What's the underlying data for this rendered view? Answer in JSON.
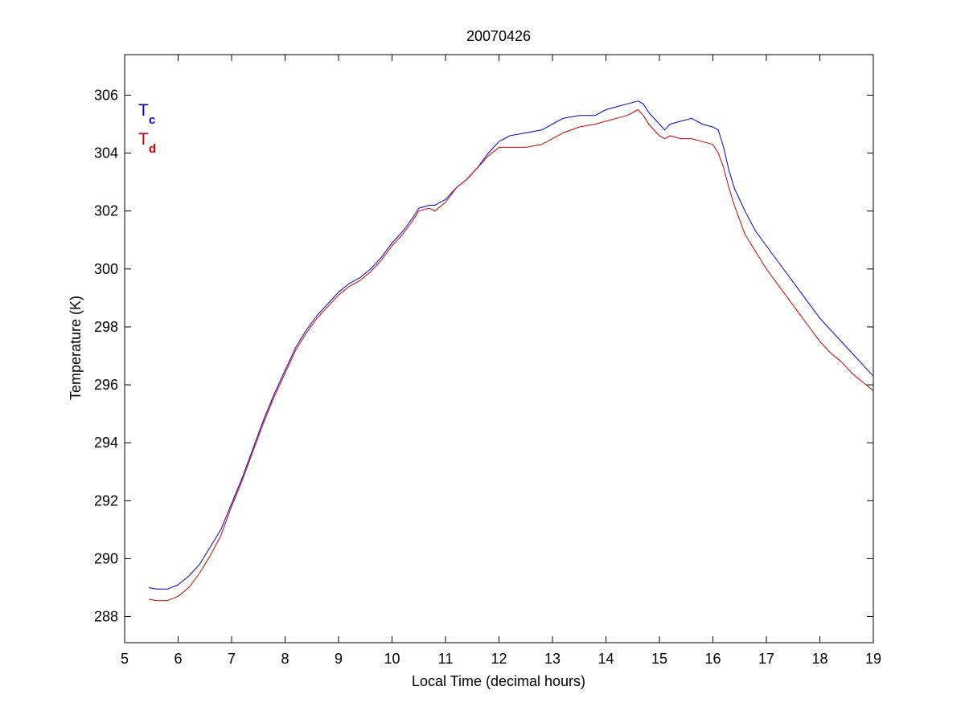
{
  "chart_data": {
    "type": "line",
    "title": "20070426",
    "xlabel": "Local Time (decimal hours)",
    "ylabel": "Temperature (K)",
    "xlim": [
      5,
      19
    ],
    "ylim": [
      287.1,
      307.4
    ],
    "xticks": [
      5,
      6,
      7,
      8,
      9,
      10,
      11,
      12,
      13,
      14,
      15,
      16,
      17,
      18,
      19
    ],
    "yticks": [
      288,
      290,
      292,
      294,
      296,
      298,
      300,
      302,
      304,
      306
    ],
    "grid": false,
    "legend_position": "top-left",
    "series": [
      {
        "name": "T",
        "subscript": "c",
        "color": "#0000cc",
        "x": [
          5.45,
          5.6,
          5.8,
          6.0,
          6.2,
          6.4,
          6.6,
          6.8,
          7.0,
          7.2,
          7.4,
          7.6,
          7.8,
          8.0,
          8.2,
          8.4,
          8.6,
          8.8,
          9.0,
          9.2,
          9.4,
          9.6,
          9.8,
          10.0,
          10.2,
          10.4,
          10.5,
          10.7,
          10.8,
          11.0,
          11.2,
          11.4,
          11.6,
          11.8,
          12.0,
          12.2,
          12.5,
          12.8,
          13.0,
          13.2,
          13.5,
          13.8,
          14.0,
          14.2,
          14.4,
          14.6,
          14.7,
          14.8,
          15.0,
          15.1,
          15.2,
          15.4,
          15.6,
          15.8,
          16.0,
          16.1,
          16.2,
          16.3,
          16.4,
          16.6,
          16.8,
          17.0,
          17.2,
          17.4,
          17.6,
          17.8,
          18.0,
          18.2,
          18.4,
          18.6,
          18.8,
          19.0
        ],
        "y": [
          289.0,
          288.95,
          288.95,
          289.1,
          289.4,
          289.8,
          290.4,
          291.0,
          291.9,
          292.8,
          293.8,
          294.8,
          295.7,
          296.5,
          297.3,
          297.9,
          298.4,
          298.8,
          299.2,
          299.5,
          299.7,
          300.0,
          300.4,
          300.9,
          301.3,
          301.8,
          302.1,
          302.2,
          302.2,
          302.4,
          302.8,
          303.1,
          303.5,
          304.0,
          304.4,
          304.6,
          304.7,
          304.8,
          305.0,
          305.2,
          305.3,
          305.3,
          305.5,
          305.6,
          305.7,
          305.8,
          305.7,
          305.4,
          305.0,
          304.8,
          305.0,
          305.1,
          305.2,
          305.0,
          304.9,
          304.8,
          304.2,
          303.4,
          302.8,
          302.0,
          301.3,
          300.8,
          300.3,
          299.8,
          299.3,
          298.8,
          298.3,
          297.9,
          297.5,
          297.1,
          296.7,
          296.3
        ]
      },
      {
        "name": "T",
        "subscript": "d",
        "color": "#cc0000",
        "x": [
          5.45,
          5.6,
          5.8,
          6.0,
          6.2,
          6.4,
          6.6,
          6.8,
          7.0,
          7.2,
          7.4,
          7.6,
          7.8,
          8.0,
          8.2,
          8.4,
          8.6,
          8.8,
          9.0,
          9.2,
          9.4,
          9.6,
          9.8,
          10.0,
          10.2,
          10.4,
          10.5,
          10.7,
          10.8,
          11.0,
          11.2,
          11.4,
          11.6,
          11.8,
          12.0,
          12.2,
          12.5,
          12.8,
          13.0,
          13.2,
          13.5,
          13.8,
          14.0,
          14.2,
          14.4,
          14.6,
          14.7,
          14.8,
          15.0,
          15.1,
          15.2,
          15.4,
          15.6,
          15.8,
          16.0,
          16.1,
          16.2,
          16.3,
          16.4,
          16.6,
          16.8,
          17.0,
          17.2,
          17.4,
          17.6,
          17.8,
          18.0,
          18.2,
          18.4,
          18.6,
          18.8,
          19.0
        ],
        "y": [
          288.6,
          288.55,
          288.55,
          288.7,
          289.0,
          289.5,
          290.1,
          290.8,
          291.8,
          292.7,
          293.7,
          294.7,
          295.6,
          296.4,
          297.2,
          297.8,
          298.3,
          298.7,
          299.1,
          299.4,
          299.6,
          299.9,
          300.3,
          300.8,
          301.2,
          301.7,
          302.0,
          302.1,
          302.0,
          302.3,
          302.8,
          303.1,
          303.5,
          303.9,
          304.2,
          304.2,
          304.2,
          304.3,
          304.5,
          304.7,
          304.9,
          305.0,
          305.1,
          305.2,
          305.3,
          305.5,
          305.3,
          305.0,
          304.6,
          304.5,
          304.6,
          304.5,
          304.5,
          304.4,
          304.3,
          304.0,
          303.5,
          302.8,
          302.2,
          301.2,
          300.6,
          300.0,
          299.5,
          299.0,
          298.5,
          298.0,
          297.5,
          297.1,
          296.8,
          296.4,
          296.1,
          295.8
        ]
      }
    ]
  }
}
